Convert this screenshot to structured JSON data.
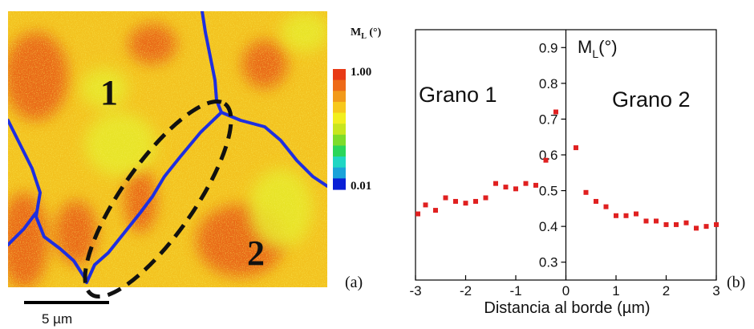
{
  "panel_a": {
    "colorbar": {
      "title_main": "M",
      "title_sub": "L",
      "title_unit": " (°)",
      "max_label": "1.00",
      "min_label": "0.01",
      "colors": [
        "#0a1fd6",
        "#1aa3d9",
        "#1fd6c3",
        "#2ad65a",
        "#7ddc2a",
        "#c8e61e",
        "#f2ef1e",
        "#f7c81c",
        "#f29a1a",
        "#ee6a18",
        "#e83a16"
      ]
    },
    "grain_labels": [
      "1",
      "2"
    ],
    "scale_bar_label": "5 µm",
    "panel_letter": "(a)",
    "map_colors": {
      "background": "#f3c21f",
      "red": "#e85a18",
      "yellow": "#e7ea2a",
      "boundary": "#1e2ee0"
    }
  },
  "chart_data": {
    "type": "scatter",
    "title": "",
    "xlabel": "Distancia al borde (µm)",
    "ylabel_main": "M",
    "ylabel_sub": "L",
    "ylabel_unit": "(°)",
    "xlim": [
      -3,
      3
    ],
    "ylim": [
      0.25,
      0.95
    ],
    "x_ticks": [
      -3,
      -2,
      -1,
      0,
      1,
      2,
      3
    ],
    "x_tick_labels": [
      "-3",
      "-2",
      "-1",
      "0",
      "1",
      "2",
      "3"
    ],
    "y_ticks": [
      0.3,
      0.4,
      0.5,
      0.6,
      0.7,
      0.8,
      0.9
    ],
    "y_tick_labels": [
      "0.3",
      "0.4",
      "0.5",
      "0.6",
      "0.7",
      "0.8",
      "0.9"
    ],
    "annotations": [
      "Grano 1",
      "Grano 2"
    ],
    "panel_letter": "(b)",
    "series": [
      {
        "color": "#e02020",
        "x": [
          -3.0,
          -2.8,
          -2.6,
          -2.4,
          -2.2,
          -2.0,
          -1.8,
          -1.6,
          -1.4,
          -1.2,
          -1.0,
          -0.8,
          -0.6,
          -0.4,
          -0.2,
          0.2,
          0.4,
          0.6,
          0.8,
          1.0,
          1.2,
          1.4,
          1.6,
          1.8,
          2.0,
          2.2,
          2.4,
          2.6,
          2.8,
          3.0
        ],
        "y": [
          0.435,
          0.46,
          0.445,
          0.48,
          0.47,
          0.465,
          0.47,
          0.48,
          0.52,
          0.51,
          0.505,
          0.52,
          0.515,
          0.585,
          0.72,
          0.62,
          0.495,
          0.47,
          0.455,
          0.43,
          0.43,
          0.435,
          0.415,
          0.415,
          0.405,
          0.405,
          0.41,
          0.395,
          0.4,
          0.405
        ]
      }
    ],
    "divider_x": 0
  }
}
